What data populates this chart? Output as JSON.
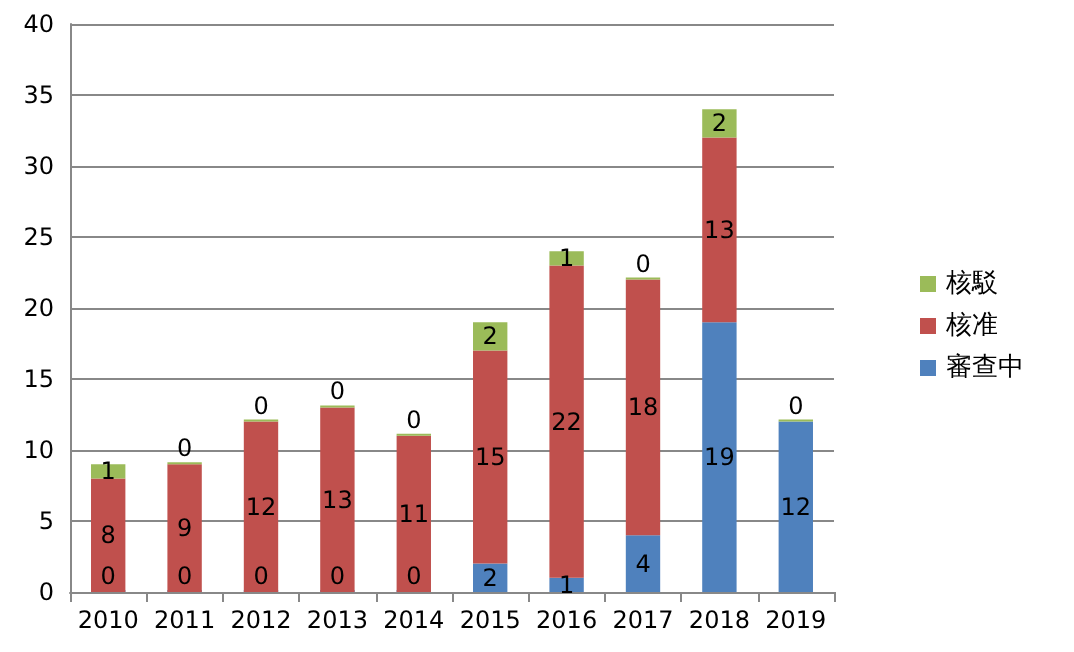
{
  "chart_data": {
    "type": "bar",
    "stacked": true,
    "categories": [
      "2010",
      "2011",
      "2012",
      "2013",
      "2014",
      "2015",
      "2016",
      "2017",
      "2018",
      "2019"
    ],
    "series": [
      {
        "name": "審查中",
        "color": "#4f81bd",
        "values": [
          0,
          0,
          0,
          0,
          0,
          2,
          1,
          4,
          19,
          12
        ]
      },
      {
        "name": "核准",
        "color": "#c0504d",
        "values": [
          8,
          9,
          12,
          13,
          11,
          15,
          22,
          18,
          13,
          null
        ]
      },
      {
        "name": "核駁",
        "color": "#9bbb59",
        "values": [
          1,
          0,
          0,
          0,
          0,
          2,
          1,
          0,
          2,
          0
        ]
      }
    ],
    "ylim": [
      0,
      40
    ],
    "yticks": [
      0,
      5,
      10,
      15,
      20,
      25,
      30,
      35,
      40
    ],
    "grid": "y",
    "legend": "right",
    "data_labels": true
  }
}
